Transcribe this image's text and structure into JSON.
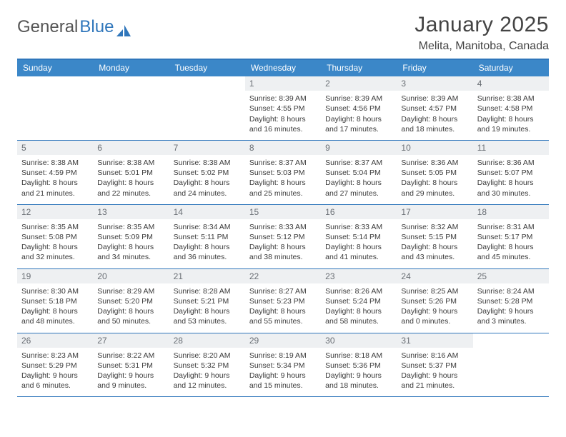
{
  "brand": {
    "part1": "General",
    "part2": "Blue"
  },
  "title": "January 2025",
  "location": "Melita, Manitoba, Canada",
  "colors": {
    "header_bg": "#3b87c8",
    "border": "#2f76bb",
    "date_bg": "#eef0f2",
    "date_fg": "#6a6f75",
    "text": "#3a3a3a"
  },
  "day_names": [
    "Sunday",
    "Monday",
    "Tuesday",
    "Wednesday",
    "Thursday",
    "Friday",
    "Saturday"
  ],
  "weeks": [
    [
      {
        "n": "",
        "sr": "",
        "ss": "",
        "dl": ""
      },
      {
        "n": "",
        "sr": "",
        "ss": "",
        "dl": ""
      },
      {
        "n": "",
        "sr": "",
        "ss": "",
        "dl": ""
      },
      {
        "n": "1",
        "sr": "Sunrise: 8:39 AM",
        "ss": "Sunset: 4:55 PM",
        "dl": "Daylight: 8 hours and 16 minutes."
      },
      {
        "n": "2",
        "sr": "Sunrise: 8:39 AM",
        "ss": "Sunset: 4:56 PM",
        "dl": "Daylight: 8 hours and 17 minutes."
      },
      {
        "n": "3",
        "sr": "Sunrise: 8:39 AM",
        "ss": "Sunset: 4:57 PM",
        "dl": "Daylight: 8 hours and 18 minutes."
      },
      {
        "n": "4",
        "sr": "Sunrise: 8:38 AM",
        "ss": "Sunset: 4:58 PM",
        "dl": "Daylight: 8 hours and 19 minutes."
      }
    ],
    [
      {
        "n": "5",
        "sr": "Sunrise: 8:38 AM",
        "ss": "Sunset: 4:59 PM",
        "dl": "Daylight: 8 hours and 21 minutes."
      },
      {
        "n": "6",
        "sr": "Sunrise: 8:38 AM",
        "ss": "Sunset: 5:01 PM",
        "dl": "Daylight: 8 hours and 22 minutes."
      },
      {
        "n": "7",
        "sr": "Sunrise: 8:38 AM",
        "ss": "Sunset: 5:02 PM",
        "dl": "Daylight: 8 hours and 24 minutes."
      },
      {
        "n": "8",
        "sr": "Sunrise: 8:37 AM",
        "ss": "Sunset: 5:03 PM",
        "dl": "Daylight: 8 hours and 25 minutes."
      },
      {
        "n": "9",
        "sr": "Sunrise: 8:37 AM",
        "ss": "Sunset: 5:04 PM",
        "dl": "Daylight: 8 hours and 27 minutes."
      },
      {
        "n": "10",
        "sr": "Sunrise: 8:36 AM",
        "ss": "Sunset: 5:05 PM",
        "dl": "Daylight: 8 hours and 29 minutes."
      },
      {
        "n": "11",
        "sr": "Sunrise: 8:36 AM",
        "ss": "Sunset: 5:07 PM",
        "dl": "Daylight: 8 hours and 30 minutes."
      }
    ],
    [
      {
        "n": "12",
        "sr": "Sunrise: 8:35 AM",
        "ss": "Sunset: 5:08 PM",
        "dl": "Daylight: 8 hours and 32 minutes."
      },
      {
        "n": "13",
        "sr": "Sunrise: 8:35 AM",
        "ss": "Sunset: 5:09 PM",
        "dl": "Daylight: 8 hours and 34 minutes."
      },
      {
        "n": "14",
        "sr": "Sunrise: 8:34 AM",
        "ss": "Sunset: 5:11 PM",
        "dl": "Daylight: 8 hours and 36 minutes."
      },
      {
        "n": "15",
        "sr": "Sunrise: 8:33 AM",
        "ss": "Sunset: 5:12 PM",
        "dl": "Daylight: 8 hours and 38 minutes."
      },
      {
        "n": "16",
        "sr": "Sunrise: 8:33 AM",
        "ss": "Sunset: 5:14 PM",
        "dl": "Daylight: 8 hours and 41 minutes."
      },
      {
        "n": "17",
        "sr": "Sunrise: 8:32 AM",
        "ss": "Sunset: 5:15 PM",
        "dl": "Daylight: 8 hours and 43 minutes."
      },
      {
        "n": "18",
        "sr": "Sunrise: 8:31 AM",
        "ss": "Sunset: 5:17 PM",
        "dl": "Daylight: 8 hours and 45 minutes."
      }
    ],
    [
      {
        "n": "19",
        "sr": "Sunrise: 8:30 AM",
        "ss": "Sunset: 5:18 PM",
        "dl": "Daylight: 8 hours and 48 minutes."
      },
      {
        "n": "20",
        "sr": "Sunrise: 8:29 AM",
        "ss": "Sunset: 5:20 PM",
        "dl": "Daylight: 8 hours and 50 minutes."
      },
      {
        "n": "21",
        "sr": "Sunrise: 8:28 AM",
        "ss": "Sunset: 5:21 PM",
        "dl": "Daylight: 8 hours and 53 minutes."
      },
      {
        "n": "22",
        "sr": "Sunrise: 8:27 AM",
        "ss": "Sunset: 5:23 PM",
        "dl": "Daylight: 8 hours and 55 minutes."
      },
      {
        "n": "23",
        "sr": "Sunrise: 8:26 AM",
        "ss": "Sunset: 5:24 PM",
        "dl": "Daylight: 8 hours and 58 minutes."
      },
      {
        "n": "24",
        "sr": "Sunrise: 8:25 AM",
        "ss": "Sunset: 5:26 PM",
        "dl": "Daylight: 9 hours and 0 minutes."
      },
      {
        "n": "25",
        "sr": "Sunrise: 8:24 AM",
        "ss": "Sunset: 5:28 PM",
        "dl": "Daylight: 9 hours and 3 minutes."
      }
    ],
    [
      {
        "n": "26",
        "sr": "Sunrise: 8:23 AM",
        "ss": "Sunset: 5:29 PM",
        "dl": "Daylight: 9 hours and 6 minutes."
      },
      {
        "n": "27",
        "sr": "Sunrise: 8:22 AM",
        "ss": "Sunset: 5:31 PM",
        "dl": "Daylight: 9 hours and 9 minutes."
      },
      {
        "n": "28",
        "sr": "Sunrise: 8:20 AM",
        "ss": "Sunset: 5:32 PM",
        "dl": "Daylight: 9 hours and 12 minutes."
      },
      {
        "n": "29",
        "sr": "Sunrise: 8:19 AM",
        "ss": "Sunset: 5:34 PM",
        "dl": "Daylight: 9 hours and 15 minutes."
      },
      {
        "n": "30",
        "sr": "Sunrise: 8:18 AM",
        "ss": "Sunset: 5:36 PM",
        "dl": "Daylight: 9 hours and 18 minutes."
      },
      {
        "n": "31",
        "sr": "Sunrise: 8:16 AM",
        "ss": "Sunset: 5:37 PM",
        "dl": "Daylight: 9 hours and 21 minutes."
      },
      {
        "n": "",
        "sr": "",
        "ss": "",
        "dl": ""
      }
    ]
  ]
}
